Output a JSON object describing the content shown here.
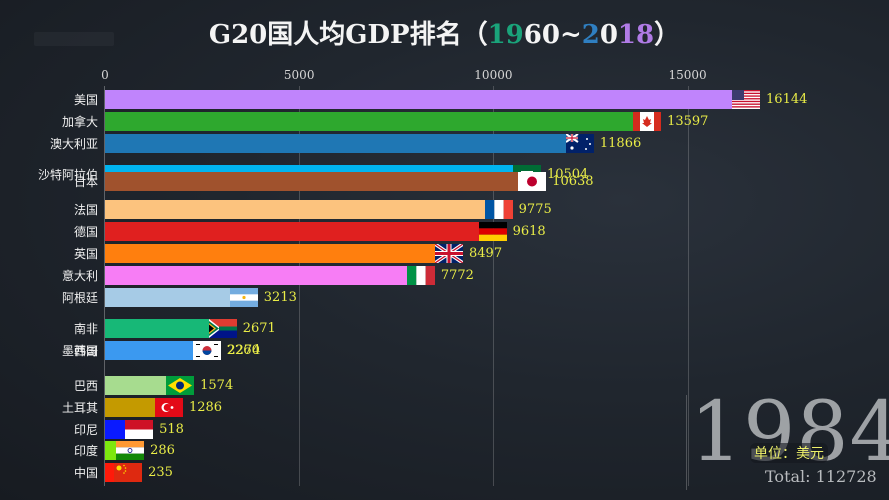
{
  "title": {
    "prefix": "G20国人均GDP排名（",
    "y1a": "19",
    "y1b": "60~",
    "y2a": "2",
    "y2b": "0",
    "y2c": "18",
    "suffix": "）"
  },
  "year": "1984",
  "unit_label": "单位：美元",
  "total_label": "Total: 112728",
  "axis": {
    "ticks": [
      "0",
      "5000",
      "10000",
      "15000"
    ]
  },
  "rows": [
    {
      "name": "美国",
      "value": "16144",
      "color": "#c084fc",
      "flag": "us-flag"
    },
    {
      "name": "加拿大",
      "value": "13597",
      "color": "#2ea82e",
      "flag": "canada-flag"
    },
    {
      "name": "澳大利亚",
      "value": "11866",
      "color": "#1f77b4",
      "flag": "australia-flag"
    },
    {
      "name": "沙特阿拉伯",
      "value": "10504",
      "color": "#00b4f0",
      "flag": "saudi-flag"
    },
    {
      "name": "日本",
      "value": "10638",
      "color": "#a0522d",
      "flag": "japan-flag"
    },
    {
      "name": "法国",
      "value": "9775",
      "color": "#fcc37e",
      "flag": "france-flag"
    },
    {
      "name": "德国",
      "value": "9618",
      "color": "#e0201f",
      "flag": "germany-flag"
    },
    {
      "name": "英国",
      "value": "8497",
      "color": "#ff7f0e",
      "flag": "uk-flag"
    },
    {
      "name": "意大利",
      "value": "7772",
      "color": "#f77df5",
      "flag": "italy-flag"
    },
    {
      "name": "阿根廷",
      "value": "3213",
      "color": "#a6cbe6",
      "flag": "argentina-flag"
    },
    {
      "name": "南非",
      "value": "2671",
      "color": "#17b877",
      "flag": "south-africa-flag"
    },
    {
      "name": "墨西哥",
      "value": "2274",
      "color": "#3b99f0",
      "flag": "mexico-flag"
    },
    {
      "name": "韩国",
      "value": "2260",
      "color": "#3b99f0",
      "flag": "korea-flag"
    },
    {
      "name": "巴西",
      "value": "1574",
      "color": "#a7dc8f",
      "flag": "brazil-flag"
    },
    {
      "name": "土耳其",
      "value": "1286",
      "color": "#c49a00",
      "flag": "turkey-flag"
    },
    {
      "name": "印尼",
      "value": "518",
      "color": "#0a1aff",
      "flag": "indonesia-flag"
    },
    {
      "name": "印度",
      "value": "286",
      "color": "#7de80e",
      "flag": "india-flag"
    },
    {
      "name": "中国",
      "value": "235",
      "color": "#ff1a0a",
      "flag": "china-flag"
    }
  ],
  "chart_data": {
    "type": "bar",
    "orientation": "horizontal",
    "title": "G20国人均GDP排名（1960~2018）",
    "frame_year": 1984,
    "xlabel": "",
    "ylabel": "",
    "unit": "美元",
    "total": 112728,
    "xlim": [
      0,
      17500
    ],
    "xticks": [
      0,
      5000,
      10000,
      15000
    ],
    "grid": true,
    "categories": [
      "美国",
      "加拿大",
      "澳大利亚",
      "日本",
      "沙特阿拉伯",
      "法国",
      "德国",
      "英国",
      "意大利",
      "阿根廷",
      "南非",
      "墨西哥",
      "韩国",
      "巴西",
      "土耳其",
      "印尼",
      "印度",
      "中国"
    ],
    "values": [
      16144,
      13597,
      11866,
      10638,
      10504,
      9775,
      9618,
      8497,
      7772,
      3213,
      2671,
      2274,
      2260,
      1574,
      1286,
      518,
      286,
      235
    ]
  }
}
